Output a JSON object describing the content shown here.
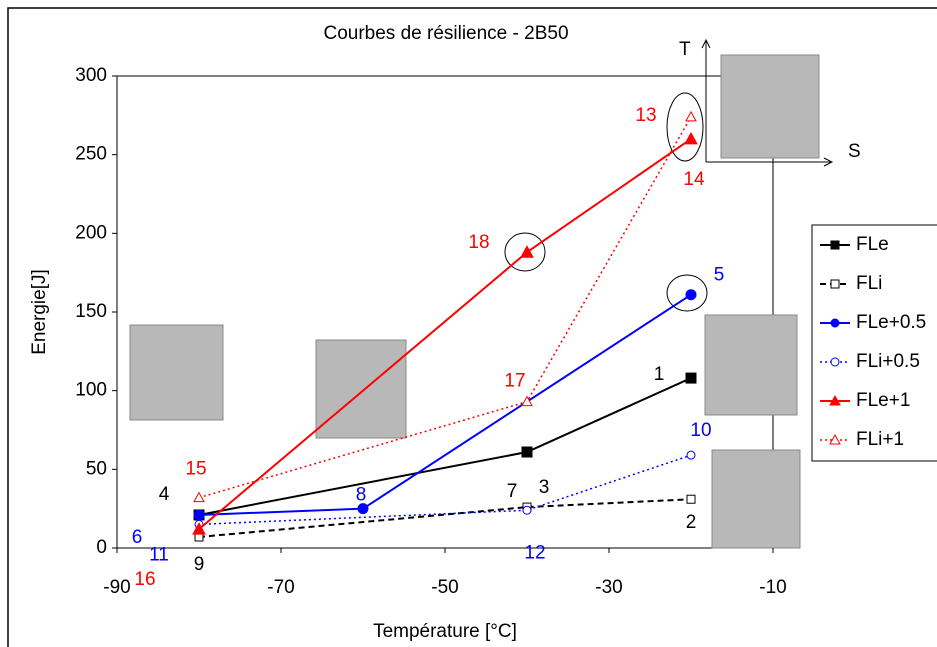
{
  "chart_data": {
    "type": "line",
    "title": "Courbes de résilience - 2B50",
    "x_label": "Température [°C]",
    "y_label": "Energie[J]",
    "inset_labels": [
      "T",
      "S"
    ],
    "xlim": [
      -90,
      -10
    ],
    "xticks": [
      -90,
      -70,
      -50,
      -30,
      -10
    ],
    "ylim": [
      0,
      300
    ],
    "yticks": [
      0,
      50,
      100,
      150,
      200,
      250,
      300
    ],
    "series": [
      {
        "name": "FLe",
        "color": "#000000",
        "linestyle": "solid",
        "marker": "square",
        "filled": true,
        "x": [
          -80,
          -40,
          -20
        ],
        "values": [
          21,
          61,
          108
        ],
        "point_labels": [
          "4",
          "3",
          "1"
        ]
      },
      {
        "name": "FLi",
        "color": "#000000",
        "linestyle": "dashed",
        "marker": "square",
        "filled": false,
        "x": [
          -80,
          -40,
          -20
        ],
        "values": [
          7,
          26,
          31
        ],
        "point_labels": [
          "9",
          "7",
          "2"
        ]
      },
      {
        "name": "FLe+0.5",
        "color": "#0000ff",
        "linestyle": "solid",
        "marker": "circle",
        "filled": true,
        "x": [
          -80,
          -60,
          -20
        ],
        "values": [
          21,
          25,
          161
        ],
        "point_labels": [
          "6",
          "8",
          "5"
        ]
      },
      {
        "name": "FLi+0.5",
        "color": "#0000ff",
        "linestyle": "dotted",
        "marker": "circle",
        "filled": false,
        "x": [
          -80,
          -40,
          -20
        ],
        "values": [
          15,
          24,
          59
        ],
        "point_labels": [
          "11",
          "12",
          "10"
        ]
      },
      {
        "name": "FLe+1",
        "color": "#ff0000",
        "linestyle": "solid",
        "marker": "triangle",
        "filled": true,
        "x": [
          -80,
          -40,
          -20
        ],
        "values": [
          12,
          188,
          260
        ],
        "point_labels": [
          "16",
          "18",
          "14"
        ]
      },
      {
        "name": "FLi+1",
        "color": "#ff0000",
        "linestyle": "dotted",
        "marker": "triangle",
        "filled": false,
        "x": [
          -80,
          -40,
          -20
        ],
        "values": [
          32,
          93,
          274
        ],
        "point_labels": [
          "15",
          "17",
          "13"
        ]
      }
    ]
  }
}
